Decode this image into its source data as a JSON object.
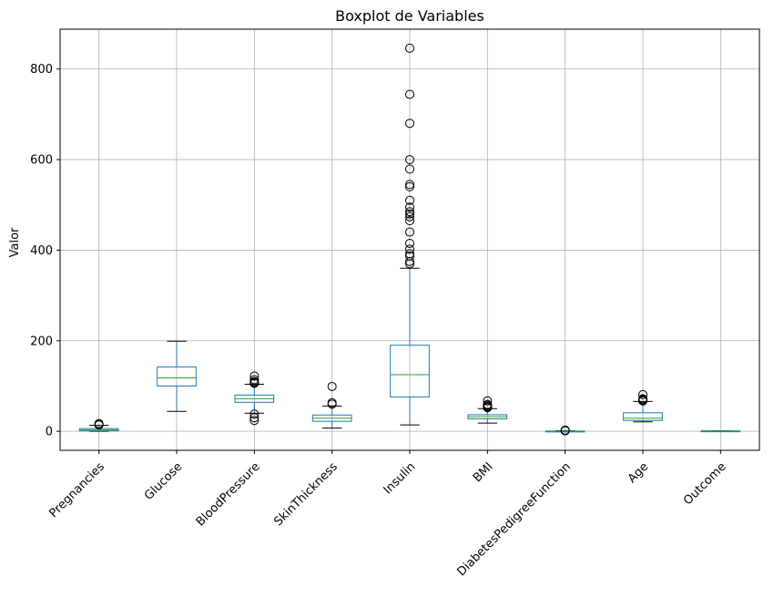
{
  "chart_data": {
    "type": "boxplot",
    "title": "Boxplot de Variables",
    "xlabel": "",
    "ylabel": "Valor",
    "ylim": [
      -42,
      888
    ],
    "yticks": [
      0,
      200,
      400,
      600,
      800
    ],
    "grid": true,
    "categories": [
      "Pregnancies",
      "Glucose",
      "BloodPressure",
      "SkinThickness",
      "Insulin",
      "BMI",
      "DiabetesPedigreeFunction",
      "Age",
      "Outcome"
    ],
    "boxes": [
      {
        "label": "Pregnancies",
        "whisker_low": 0,
        "q1": 1,
        "median": 3,
        "q3": 6,
        "whisker_high": 13,
        "outliers": [
          14,
          15,
          17
        ]
      },
      {
        "label": "Glucose",
        "whisker_low": 44,
        "q1": 100,
        "median": 118,
        "q3": 142,
        "whisker_high": 199,
        "outliers": []
      },
      {
        "label": "BloodPressure",
        "whisker_low": 40,
        "q1": 64,
        "median": 72,
        "q3": 80,
        "whisker_high": 104,
        "outliers": [
          24,
          30,
          38,
          106,
          108,
          110,
          114,
          122
        ]
      },
      {
        "label": "SkinThickness",
        "whisker_low": 7,
        "q1": 22,
        "median": 29,
        "q3": 36,
        "whisker_high": 56,
        "outliers": [
          60,
          63,
          99
        ]
      },
      {
        "label": "Insulin",
        "whisker_low": 14,
        "q1": 76,
        "median": 125,
        "q3": 190,
        "whisker_high": 360,
        "outliers": [
          370,
          375,
          387,
          392,
          402,
          415,
          440,
          465,
          474,
          480,
          485,
          495,
          510,
          540,
          545,
          579,
          600,
          680,
          744,
          846
        ]
      },
      {
        "label": "BMI",
        "whisker_low": 18.2,
        "q1": 27.5,
        "median": 32.3,
        "q3": 36.6,
        "whisker_high": 50,
        "outliers": [
          52.3,
          53.2,
          55,
          57.3,
          59.4,
          67.1
        ]
      },
      {
        "label": "DiabetesPedigreeFunction",
        "whisker_low": 0.078,
        "q1": 0.244,
        "median": 0.372,
        "q3": 0.626,
        "whisker_high": 1.19,
        "outliers": [
          1.2,
          1.4,
          1.7,
          2.1,
          2.42
        ]
      },
      {
        "label": "Age",
        "whisker_low": 21,
        "q1": 24,
        "median": 29,
        "q3": 41,
        "whisker_high": 66,
        "outliers": [
          67,
          69,
          70,
          72,
          81
        ]
      },
      {
        "label": "Outcome",
        "whisker_low": 0,
        "q1": 0,
        "median": 0,
        "q3": 1,
        "whisker_high": 1,
        "outliers": []
      }
    ],
    "colors": {
      "box": "#1f77b4",
      "median": "#2ca02c",
      "grid": "#b0b0b0",
      "outlier": "#000000"
    }
  }
}
